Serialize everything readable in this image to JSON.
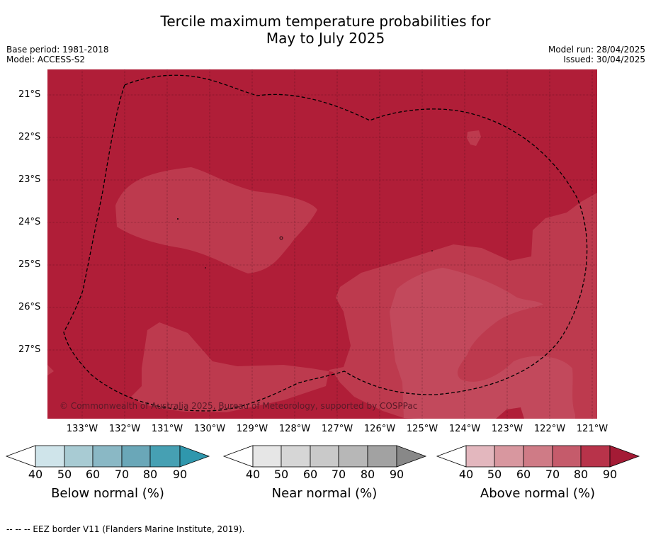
{
  "title_line1": "Tercile maximum temperature probabilities for",
  "title_line2": "May to July 2025",
  "meta_left": {
    "base_period": "Base period: 1981-2018",
    "model": "Model: ACCESS-S2"
  },
  "meta_right": {
    "model_run": "Model run: 28/04/2025",
    "issued": "Issued: 30/04/2025"
  },
  "map": {
    "latitudes": [
      "21°S",
      "22°S",
      "23°S",
      "24°S",
      "25°S",
      "26°S",
      "27°S"
    ],
    "longitudes": [
      "133°W",
      "132°W",
      "131°W",
      "130°W",
      "129°W",
      "128°W",
      "127°W",
      "126°W",
      "125°W",
      "124°W",
      "123°W",
      "122°W",
      "121°W"
    ],
    "copyright": "© Commonwealth of Australia 2025, Bureau of Meteorology, supported by COSPPac",
    "colors": {
      "above_80_90": "#b01e38",
      "above_70_80": "#bd3a4e",
      "above_60_70": "#c2495c"
    }
  },
  "legends": [
    {
      "title": "Below normal (%)",
      "ticks": [
        "40",
        "50",
        "60",
        "70",
        "80",
        "90"
      ],
      "colors": [
        "#cfe4ea",
        "#a8cbd3",
        "#8ab8c5",
        "#6aa7b8",
        "#46a0b3",
        "#2f97ad"
      ]
    },
    {
      "title": "Near normal (%)",
      "ticks": [
        "40",
        "50",
        "60",
        "70",
        "80",
        "90"
      ],
      "colors": [
        "#e6e6e6",
        "#d6d6d6",
        "#c9c9c9",
        "#b7b7b7",
        "#a2a2a2",
        "#888888"
      ]
    },
    {
      "title": "Above normal (%)",
      "ticks": [
        "40",
        "50",
        "60",
        "70",
        "80",
        "90"
      ],
      "colors": [
        "#e3b7be",
        "#d8979f",
        "#cf7b86",
        "#c55b6b",
        "#b8334a",
        "#a41b35"
      ]
    }
  ],
  "footer": "-- -- -- EEZ border V11 (Flanders Marine Institute, 2019)."
}
